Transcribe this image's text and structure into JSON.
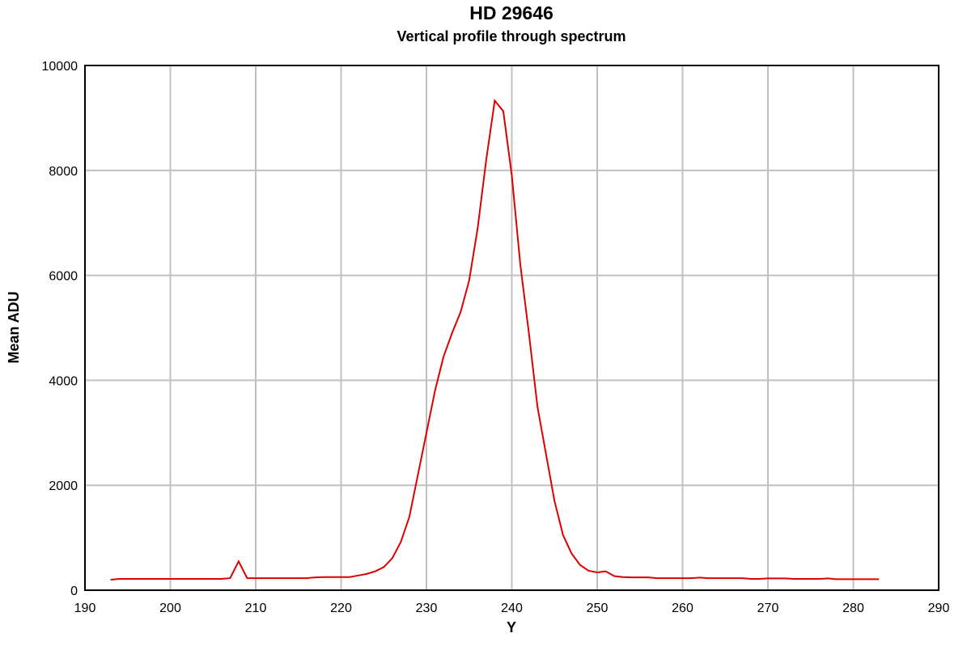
{
  "chart_data": {
    "type": "line",
    "title": "HD 29646",
    "subtitle": "Vertical profile through spectrum",
    "x_label": "Y",
    "y_label": "Mean ADU",
    "x": [
      193,
      194,
      195,
      196,
      197,
      198,
      199,
      200,
      201,
      202,
      203,
      204,
      205,
      206,
      207,
      208,
      209,
      210,
      211,
      212,
      213,
      214,
      215,
      216,
      217,
      218,
      219,
      220,
      221,
      222,
      223,
      224,
      225,
      226,
      227,
      228,
      229,
      230,
      231,
      232,
      233,
      234,
      235,
      236,
      237,
      238,
      239,
      240,
      241,
      242,
      243,
      244,
      245,
      246,
      247,
      248,
      249,
      250,
      251,
      252,
      253,
      254,
      255,
      256,
      257,
      258,
      259,
      260,
      261,
      262,
      263,
      264,
      265,
      266,
      267,
      268,
      269,
      270,
      271,
      272,
      273,
      274,
      275,
      276,
      277,
      278,
      279,
      280,
      281,
      282,
      283
    ],
    "series": [
      {
        "name": "Mean ADU",
        "color": "#dd0000",
        "values": [
          200,
          215,
          215,
          215,
          215,
          215,
          215,
          215,
          215,
          215,
          215,
          215,
          215,
          215,
          230,
          550,
          230,
          230,
          230,
          230,
          230,
          230,
          230,
          230,
          245,
          250,
          250,
          250,
          250,
          280,
          310,
          360,
          440,
          610,
          920,
          1400,
          2200,
          3000,
          3800,
          4450,
          4900,
          5300,
          5900,
          6900,
          8200,
          9330,
          9130,
          7900,
          6200,
          4900,
          3500,
          2600,
          1700,
          1050,
          700,
          480,
          370,
          340,
          360,
          270,
          250,
          245,
          245,
          245,
          230,
          230,
          230,
          230,
          230,
          240,
          230,
          230,
          230,
          230,
          230,
          215,
          215,
          225,
          225,
          225,
          215,
          215,
          215,
          215,
          225,
          210,
          210,
          210,
          210,
          210,
          210
        ]
      }
    ],
    "xlim": [
      190,
      290
    ],
    "xticks": [
      190,
      200,
      210,
      220,
      230,
      240,
      250,
      260,
      270,
      280,
      290
    ],
    "ylim": [
      0,
      10000
    ],
    "yticks": [
      0,
      2000,
      4000,
      6000,
      8000,
      10000
    ],
    "grid": true
  }
}
